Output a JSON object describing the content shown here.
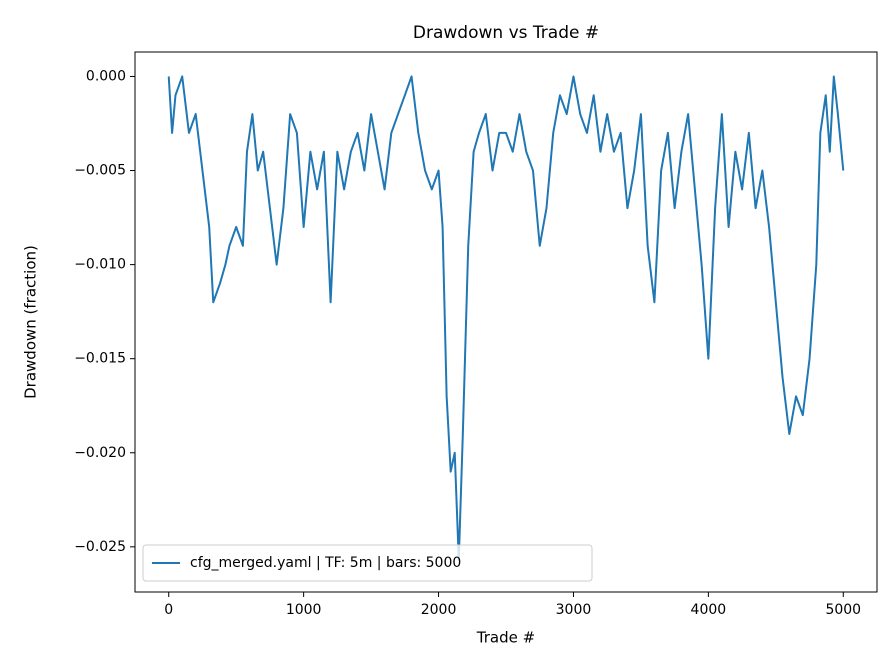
{
  "chart_data": {
    "type": "line",
    "title": "Drawdown vs Trade #",
    "x_label": "Trade #",
    "y_label": "Drawdown (fraction)",
    "x": [
      0,
      25,
      50,
      100,
      150,
      200,
      250,
      300,
      330,
      380,
      420,
      450,
      500,
      550,
      580,
      620,
      660,
      700,
      750,
      800,
      850,
      900,
      950,
      1000,
      1050,
      1100,
      1150,
      1200,
      1250,
      1300,
      1350,
      1400,
      1450,
      1500,
      1550,
      1600,
      1650,
      1700,
      1750,
      1800,
      1850,
      1900,
      1950,
      2000,
      2030,
      2060,
      2090,
      2120,
      2150,
      2180,
      2220,
      2260,
      2300,
      2350,
      2400,
      2450,
      2500,
      2550,
      2600,
      2650,
      2700,
      2750,
      2800,
      2850,
      2900,
      2950,
      3000,
      3050,
      3100,
      3150,
      3200,
      3250,
      3300,
      3350,
      3400,
      3450,
      3500,
      3550,
      3600,
      3650,
      3700,
      3750,
      3800,
      3850,
      3900,
      3950,
      4000,
      4050,
      4100,
      4150,
      4200,
      4250,
      4300,
      4350,
      4400,
      4450,
      4500,
      4550,
      4600,
      4650,
      4700,
      4750,
      4800,
      4830,
      4870,
      4900,
      4930,
      4960,
      5000
    ],
    "series": [
      {
        "name": "cfg_merged.yaml | TF: 5m | bars: 5000",
        "color": "#1f77b4",
        "values": [
          0,
          -0.003,
          -0.001,
          0,
          -0.003,
          -0.002,
          -0.005,
          -0.008,
          -0.012,
          -0.011,
          -0.01,
          -0.009,
          -0.008,
          -0.009,
          -0.004,
          -0.002,
          -0.005,
          -0.004,
          -0.007,
          -0.01,
          -0.007,
          -0.002,
          -0.003,
          -0.008,
          -0.004,
          -0.006,
          -0.004,
          -0.012,
          -0.004,
          -0.006,
          -0.004,
          -0.003,
          -0.005,
          -0.002,
          -0.004,
          -0.006,
          -0.003,
          -0.002,
          -0.001,
          0,
          -0.003,
          -0.005,
          -0.006,
          -0.005,
          -0.008,
          -0.017,
          -0.021,
          -0.02,
          -0.0257,
          -0.019,
          -0.009,
          -0.004,
          -0.003,
          -0.002,
          -0.005,
          -0.003,
          -0.003,
          -0.004,
          -0.002,
          -0.004,
          -0.005,
          -0.009,
          -0.007,
          -0.003,
          -0.001,
          -0.002,
          0,
          -0.002,
          -0.003,
          -0.001,
          -0.004,
          -0.002,
          -0.004,
          -0.003,
          -0.007,
          -0.005,
          -0.002,
          -0.009,
          -0.012,
          -0.005,
          -0.003,
          -0.007,
          -0.004,
          -0.002,
          -0.006,
          -0.01,
          -0.015,
          -0.007,
          -0.002,
          -0.008,
          -0.004,
          -0.006,
          -0.003,
          -0.007,
          -0.005,
          -0.008,
          -0.012,
          -0.016,
          -0.019,
          -0.017,
          -0.018,
          -0.015,
          -0.01,
          -0.003,
          -0.001,
          -0.004,
          0,
          -0.002,
          -0.005
        ]
      }
    ],
    "xlim": [
      -250,
      5250
    ],
    "ylim": [
      -0.0274,
      0.0013
    ],
    "xticks": [
      0,
      1000,
      2000,
      3000,
      4000,
      5000
    ],
    "yticks": [
      {
        "value": -0.025,
        "label": "−0.025"
      },
      {
        "value": -0.02,
        "label": "−0.020"
      },
      {
        "value": -0.015,
        "label": "−0.015"
      },
      {
        "value": -0.01,
        "label": "−0.010"
      },
      {
        "value": -0.005,
        "label": "−0.005"
      },
      {
        "value": 0,
        "label": "0.000"
      }
    ],
    "legend": "lower left",
    "grid": false
  }
}
